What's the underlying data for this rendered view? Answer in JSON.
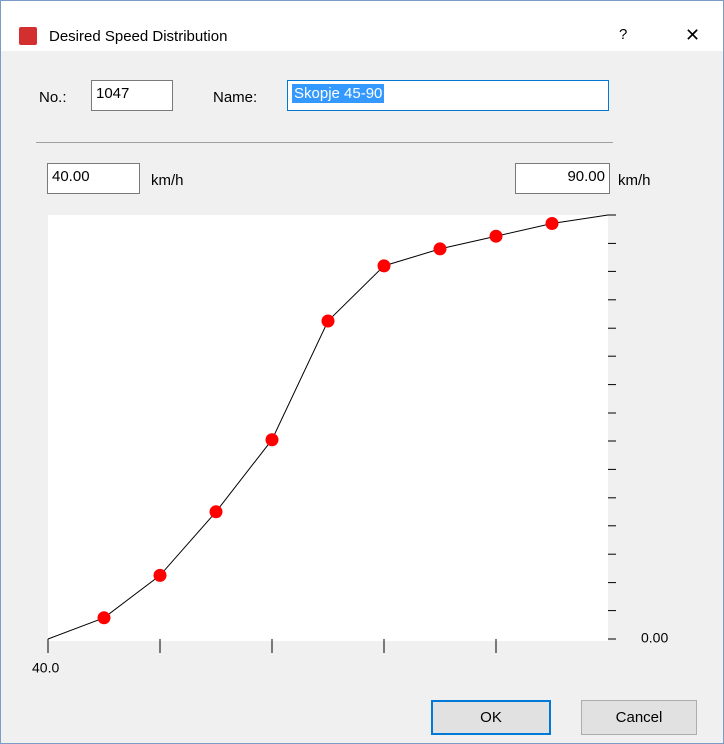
{
  "window": {
    "title": "Desired Speed Distribution",
    "help": "?",
    "close": "✕"
  },
  "fields": {
    "no_label": "No.:",
    "no_value": "1047",
    "name_label": "Name:",
    "name_value": "Skopje 45-90"
  },
  "chart": {
    "type": "line",
    "min_speed": "40.00",
    "max_speed": "90.00",
    "unit": "km/h",
    "x": [
      40,
      45,
      50,
      55,
      60,
      65,
      70,
      75,
      80,
      85,
      90
    ],
    "values": [
      0,
      0.05,
      0.15,
      0.3,
      0.47,
      0.75,
      0.88,
      0.92,
      0.95,
      0.98,
      1.0
    ],
    "xlim": [
      40,
      90
    ],
    "ylim": [
      0,
      1
    ],
    "xticks": [
      {
        "value": 40,
        "label": "40.0"
      },
      50,
      60,
      70,
      80
    ],
    "yticks": [
      {
        "value": 0,
        "label": "0.00"
      },
      0.067,
      0.133,
      0.2,
      0.267,
      0.333,
      0.4,
      0.467,
      0.533,
      0.6,
      0.667,
      0.733,
      0.8,
      0.867,
      0.933,
      1
    ],
    "color": "#000000",
    "marker_color": "#ff0000"
  },
  "buttons": {
    "ok": "OK",
    "cancel": "Cancel"
  }
}
